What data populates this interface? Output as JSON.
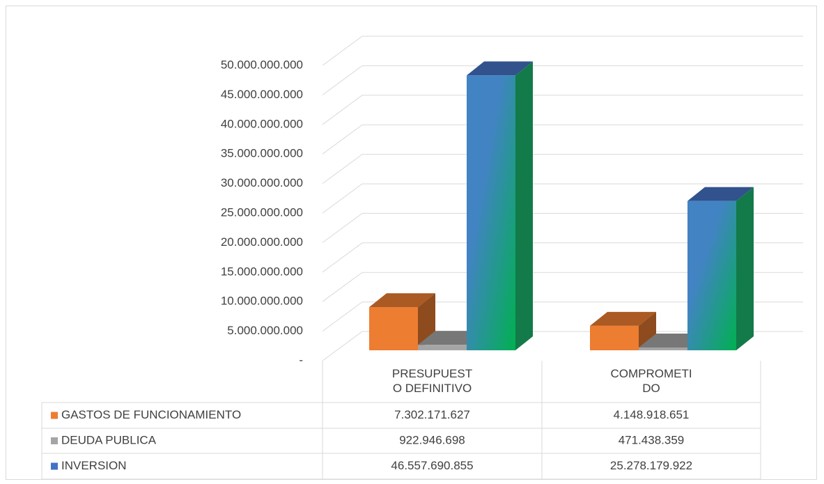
{
  "chart_data": {
    "type": "bar",
    "categories": [
      "PRESUPUESTO DEFINITIVO",
      "COMPROMETIDO"
    ],
    "series": [
      {
        "name": "GASTOS DE FUNCIONAMIENTO",
        "color": "#ed7d31",
        "values": [
          7302171627,
          4148918651
        ],
        "value_labels": [
          "7.302.171.627",
          "4.148.918.651"
        ]
      },
      {
        "name": "DEUDA PUBLICA",
        "color": "#a5a5a5",
        "values": [
          922946698,
          471438359
        ],
        "value_labels": [
          "922.946.698",
          "471.438.359"
        ]
      },
      {
        "name": "INVERSION",
        "color": "#4472c4",
        "values": [
          46557690855,
          25278179922
        ],
        "value_labels": [
          "46.557.690.855",
          "25.278.179.922"
        ]
      }
    ],
    "ylim": [
      0,
      50000000000
    ],
    "yticks": [
      {
        "value": 0,
        "label": "-"
      },
      {
        "value": 5000000000,
        "label": "5.000.000.000"
      },
      {
        "value": 10000000000,
        "label": "10.000.000.000"
      },
      {
        "value": 15000000000,
        "label": "15.000.000.000"
      },
      {
        "value": 20000000000,
        "label": "20.000.000.000"
      },
      {
        "value": 25000000000,
        "label": "25.000.000.000"
      },
      {
        "value": 30000000000,
        "label": "30.000.000.000"
      },
      {
        "value": 35000000000,
        "label": "35.000.000.000"
      },
      {
        "value": 40000000000,
        "label": "40.000.000.000"
      },
      {
        "value": 45000000000,
        "label": "45.000.000.000"
      },
      {
        "value": 50000000000,
        "label": "50.000.000.000"
      }
    ],
    "grid": true
  }
}
